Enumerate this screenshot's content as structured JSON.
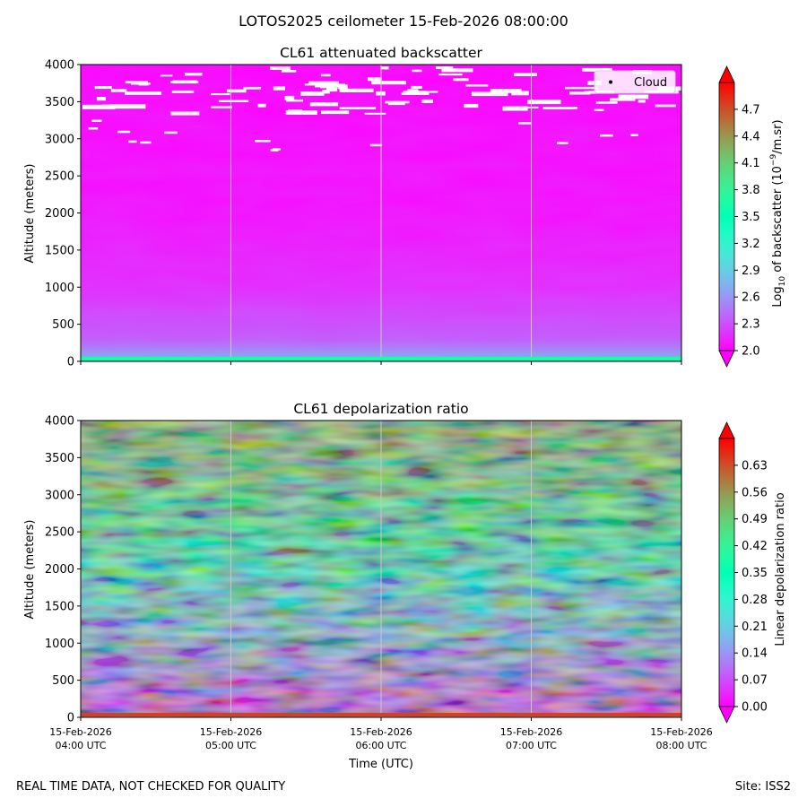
{
  "suptitle": "LOTOS2025 ceilometer 15-Feb-2026 08:00:00",
  "footer_left": "REAL TIME DATA, NOT CHECKED FOR QUALITY",
  "footer_right": "Site: ISS2",
  "chart_data": [
    {
      "type": "heatmap",
      "title": "CL61 attenuated backscatter",
      "ylabel": "Altitude (meters)",
      "xlabel": "",
      "ylim": [
        0,
        4000
      ],
      "y_ticks": [
        0,
        500,
        1000,
        1500,
        2000,
        2500,
        3000,
        3500,
        4000
      ],
      "x_ticks": [
        "",
        "",
        "",
        "",
        ""
      ],
      "grid": "vertical lines at x ticks",
      "legend": {
        "location": "top-right",
        "entries": [
          "Cloud"
        ]
      },
      "colormap": "rainbow",
      "colorbar": {
        "label": "Log10 of backscatter (10^-9/m.sr)",
        "range": [
          2.0,
          5.0
        ],
        "ticks": [
          "2.0",
          "2.3",
          "2.6",
          "2.9",
          "3.2",
          "3.5",
          "3.8",
          "4.1",
          "4.4",
          "4.7"
        ]
      },
      "profile": [
        {
          "altitude": 0,
          "value": 3.5
        },
        {
          "altitude": 100,
          "value": 2.6
        },
        {
          "altitude": 300,
          "value": 2.35
        },
        {
          "altitude": 1000,
          "value": 2.15
        },
        {
          "altitude": 2000,
          "value": 2.05
        },
        {
          "altitude": 4000,
          "value": 2.0
        }
      ]
    },
    {
      "type": "heatmap",
      "title": "CL61 depolarization ratio",
      "ylabel": "Altitude (meters)",
      "xlabel": "Time (UTC)",
      "ylim": [
        0,
        4000
      ],
      "y_ticks": [
        0,
        500,
        1000,
        1500,
        2000,
        2500,
        3000,
        3500,
        4000
      ],
      "x_ticks": [
        {
          "date": "15-Feb-2026",
          "time": "04:00 UTC"
        },
        {
          "date": "15-Feb-2026",
          "time": "05:00 UTC"
        },
        {
          "date": "15-Feb-2026",
          "time": "06:00 UTC"
        },
        {
          "date": "15-Feb-2026",
          "time": "07:00 UTC"
        },
        {
          "date": "15-Feb-2026",
          "time": "08:00 UTC"
        }
      ],
      "grid": "vertical lines at x ticks",
      "colormap": "rainbow",
      "colorbar": {
        "label": "Linear depolarization ratio",
        "range": [
          0.0,
          0.7
        ],
        "ticks": [
          "0.00",
          "0.07",
          "0.14",
          "0.21",
          "0.28",
          "0.35",
          "0.42",
          "0.49",
          "0.56",
          "0.63"
        ]
      },
      "profile": [
        {
          "altitude": 0,
          "value": 0.62
        },
        {
          "altitude": 100,
          "value": 0.05
        },
        {
          "altitude": 500,
          "value": 0.1
        },
        {
          "altitude": 1000,
          "value": 0.18
        },
        {
          "altitude": 1500,
          "value": 0.22
        },
        {
          "altitude": 2000,
          "value": 0.3
        },
        {
          "altitude": 2500,
          "value": 0.4
        },
        {
          "altitude": 3000,
          "value": 0.45
        },
        {
          "altitude": 3500,
          "value": 0.5
        },
        {
          "altitude": 4000,
          "value": 0.52
        }
      ]
    }
  ]
}
